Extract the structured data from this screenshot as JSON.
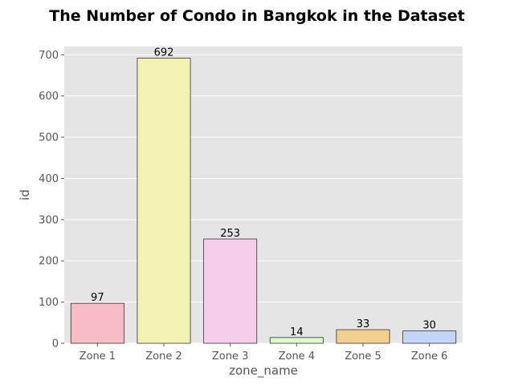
{
  "chart_data": {
    "type": "bar",
    "title": "The Number of Condo in Bangkok in the Dataset",
    "xlabel": "zone_name",
    "ylabel": "id",
    "categories": [
      "Zone 1",
      "Zone 2",
      "Zone 3",
      "Zone 4",
      "Zone 5",
      "Zone 6"
    ],
    "values": [
      97,
      692,
      253,
      14,
      33,
      30
    ],
    "data_labels": [
      "97",
      "692",
      "253",
      "14",
      "33",
      "30"
    ],
    "colors": [
      "#f7bcc6",
      "#f2f2b3",
      "#f7cdec",
      "#ddf9cc",
      "#f4d08e",
      "#c4d4f8"
    ],
    "ylim": [
      0,
      720
    ],
    "yticks": [
      0,
      100,
      200,
      300,
      400,
      500,
      600,
      700
    ],
    "grid": true,
    "background": "#e5e5e5"
  }
}
